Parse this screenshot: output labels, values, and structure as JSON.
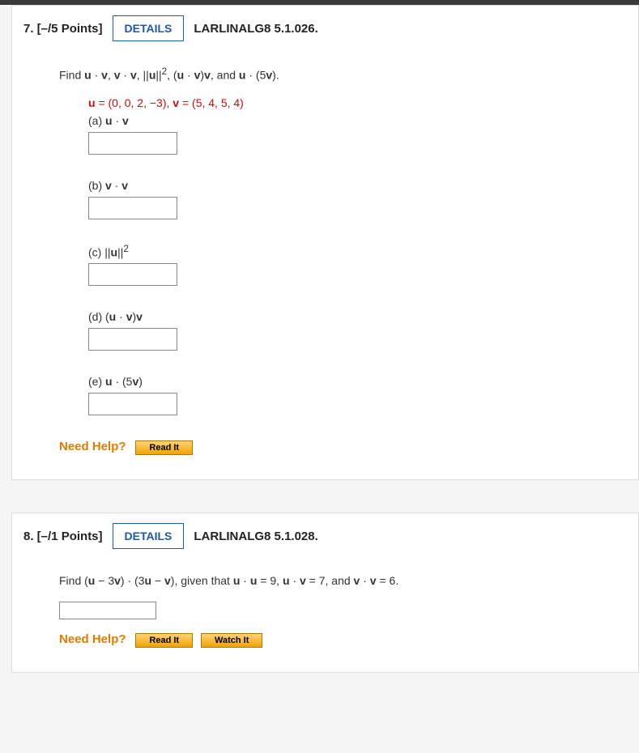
{
  "q7": {
    "header": {
      "num_points": "7. [–/5 Points]",
      "details": "DETAILS",
      "ref": "LARLINALG8 5.1.026."
    },
    "prompt_html": "Find <b>u</b> · <b>v</b>, <b>v</b> · <b>v</b>,  ||<b>u</b>||<sup>2</sup>,  (<b>u</b> · <b>v</b>)<b>v</b>, and <b>u</b> · (5<b>v</b>).",
    "vectors_html": "<b>u</b> = (0, 0, 2, −3),    <b>v</b> = (5, 4, 5, 4)",
    "parts": {
      "a": "(a)    <b>u</b> · <b>v</b>",
      "b": "(b)    <b>v</b> · <b>v</b>",
      "c": "(c)    ||<b>u</b>||<sup>2</sup>",
      "d": "(d)    (<b>u</b> · <b>v</b>)<b>v</b>",
      "e": "(e)    <b>u</b> · (5<b>v</b>)"
    },
    "need_help": "Need Help?",
    "read_it": "Read It"
  },
  "q8": {
    "header": {
      "num_points": "8. [–/1 Points]",
      "details": "DETAILS",
      "ref": "LARLINALG8 5.1.028."
    },
    "prompt_html": "Find (<b>u</b> − 3<b>v</b>) · (3<b>u</b> − <b>v</b>), given that <b>u</b> · <b>u</b> = 9,  <b>u</b> · <b>v</b> = 7,  and <b>v</b> · <b>v</b> = 6.",
    "need_help": "Need Help?",
    "read_it": "Read It",
    "watch_it": "Watch It"
  },
  "colors": {
    "accent_blue": "#1e5aa8",
    "need_help_orange": "#e07b00",
    "vectors_red": "#c90e0e",
    "help_btn_top": "#ffd27a",
    "help_btn_bottom": "#f0a400",
    "card_bg": "#ffffff",
    "page_bg": "#f5f5f5",
    "topstrip": "#3a3a3a"
  }
}
